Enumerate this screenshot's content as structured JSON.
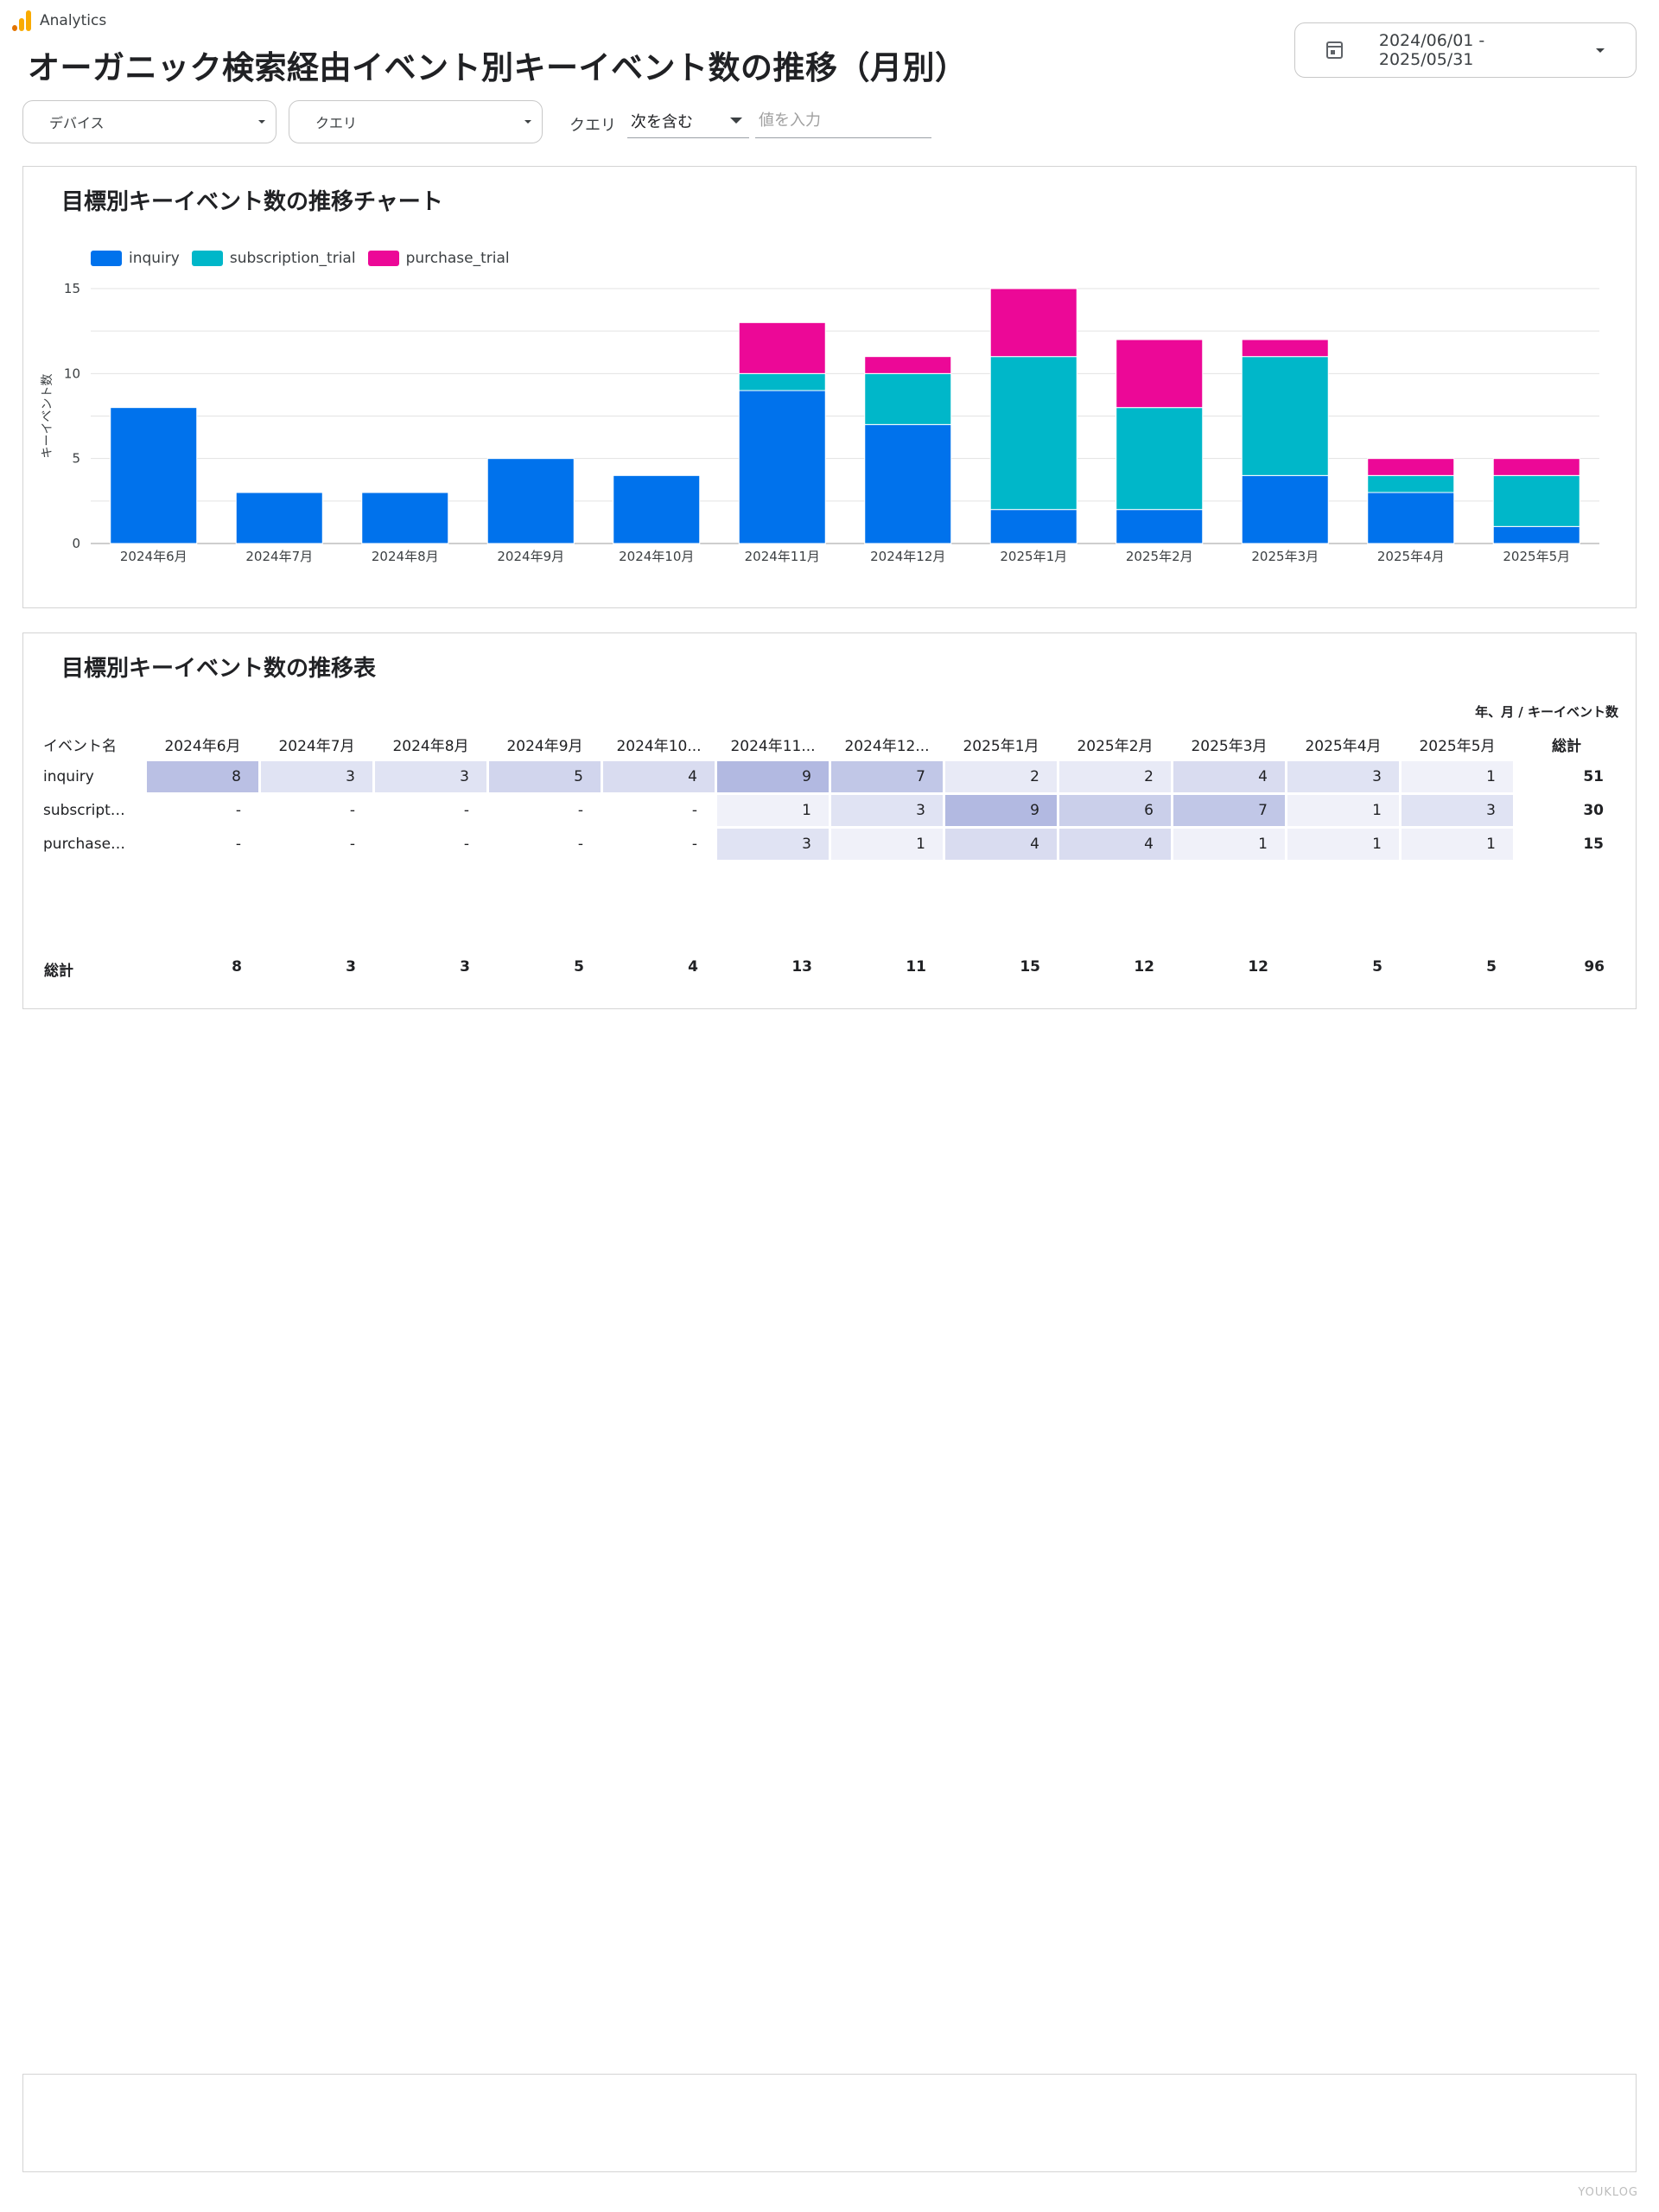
{
  "app": {
    "name": "Analytics"
  },
  "page": {
    "title": "オーガニック検索経由イベント別キーイベント数の推移（月別）"
  },
  "date_range": {
    "value": "2024/06/01 - 2025/05/31",
    "icon": "calendar-icon"
  },
  "filters": {
    "device_label": "デバイス",
    "query_label": "クエリ",
    "condition_label": "クエリ",
    "operator": "次を含む",
    "value_placeholder": "値を入力"
  },
  "chart": {
    "title": "目標別キーイベント数の推移チャート",
    "legend": [
      "inquiry",
      "subscription_trial",
      "purchase_trial"
    ]
  },
  "chart_data": {
    "type": "bar",
    "stacked": true,
    "categories": [
      "2024年6月",
      "2024年7月",
      "2024年8月",
      "2024年9月",
      "2024年10月",
      "2024年11月",
      "2024年12月",
      "2025年1月",
      "2025年2月",
      "2025年3月",
      "2025年4月",
      "2025年5月"
    ],
    "series": [
      {
        "name": "inquiry",
        "color": "#0072ec",
        "values": [
          8,
          3,
          3,
          5,
          4,
          9,
          7,
          2,
          2,
          4,
          3,
          1
        ]
      },
      {
        "name": "subscription_trial",
        "color": "#00b7c9",
        "values": [
          0,
          0,
          0,
          0,
          0,
          1,
          3,
          9,
          6,
          7,
          1,
          3
        ]
      },
      {
        "name": "purchase_trial",
        "color": "#ec0897",
        "values": [
          0,
          0,
          0,
          0,
          0,
          3,
          1,
          4,
          4,
          1,
          1,
          1
        ]
      }
    ],
    "ylabel": "キーイベント数",
    "yticks": [
      0,
      5,
      10,
      15
    ],
    "ylim": [
      0,
      15
    ],
    "grid": true,
    "legend_position": "top-left"
  },
  "table": {
    "title": "目標別キーイベント数の推移表",
    "subtitle": "年、月 / キーイベント数",
    "name_header": "イベント名",
    "month_headers": [
      "2024年6月",
      "2024年7月",
      "2024年8月",
      "2024年9月",
      "2024年10...",
      "2024年11...",
      "2024年12...",
      "2025年1月",
      "2025年2月",
      "2025年3月",
      "2025年4月",
      "2025年5月"
    ],
    "total_header": "総計",
    "rows": [
      {
        "name": "inquiry",
        "cells": [
          "8",
          "3",
          "3",
          "5",
          "4",
          "9",
          "7",
          "2",
          "2",
          "4",
          "3",
          "1"
        ],
        "total": "51"
      },
      {
        "name": "subscriptio...",
        "cells": [
          "-",
          "-",
          "-",
          "-",
          "-",
          "1",
          "3",
          "9",
          "6",
          "7",
          "1",
          "3"
        ],
        "total": "30"
      },
      {
        "name": "purchase_tr...",
        "cells": [
          "-",
          "-",
          "-",
          "-",
          "-",
          "3",
          "1",
          "4",
          "4",
          "1",
          "1",
          "1"
        ],
        "total": "15"
      }
    ],
    "totals_label": "総計",
    "totals": [
      "8",
      "3",
      "3",
      "5",
      "4",
      "13",
      "11",
      "15",
      "12",
      "12",
      "5",
      "5"
    ],
    "grand_total": "96",
    "heat_color": "#3f51b5"
  },
  "footer": {
    "mark": "YOUKLOG"
  }
}
